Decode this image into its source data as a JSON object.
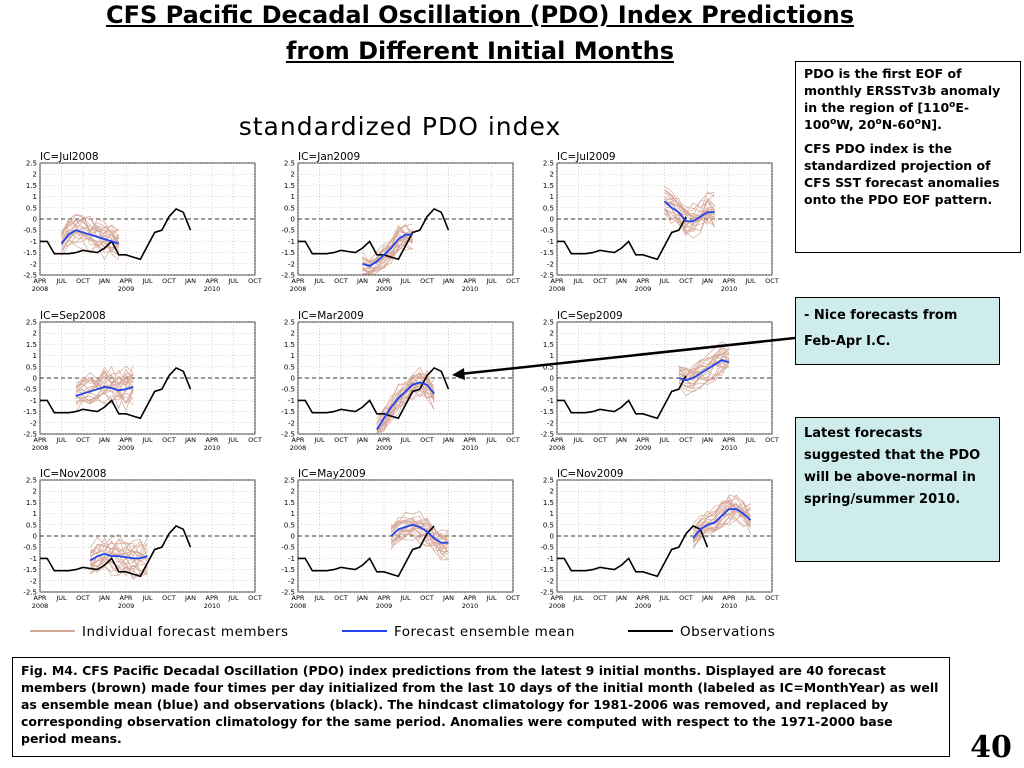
{
  "header": {
    "title_line1": "CFS Pacific Decadal Oscillation (PDO) Index Predictions",
    "title_line2": "from Different Initial Months"
  },
  "chart_title": "standardized PDO index",
  "info_box": {
    "p1_a": "PDO  is the first EOF of monthly ERSSTv3b anomaly  in the region of [110",
    "p1_sup1": "o",
    "p1_b": "E-100",
    "p1_sup2": "o",
    "p1_c": "W, 20",
    "p1_sup3": "o",
    "p1_d": "N-60",
    "p1_sup4": "o",
    "p1_e": "N].",
    "p2": "CFS PDO index  is  the standardized projection of CFS SST forecast anomalies onto the PDO EOF pattern."
  },
  "note_box": {
    "dash": "- ",
    "text": "Nice forecasts from Feb-Apr I.C."
  },
  "latest_box": {
    "text": "Latest forecasts suggested that the PDO will be above-normal in spring/summer 2010."
  },
  "caption": "Fig. M4. CFS Pacific Decadal Oscillation (PDO) index predictions from the latest 9 initial months. Displayed are 40 forecast members (brown) made four times per day initialized from the last 10 days of the initial month (labeled as IC=MonthYear) as well as ensemble mean (blue) and observations (black). The hindcast climatology for 1981-2006 was removed, and replaced by corresponding observation climatology for the same period. Anomalies were computed with respect to the 1971-2000 base period means.",
  "page_number": "40",
  "colors": {
    "members": "#d6a898",
    "ensemble_mean": "#2244ee",
    "observations": "#000000",
    "panel_bg": "#ffffff"
  },
  "legend": [
    {
      "label": "Individual forecast members",
      "color": "#d6a898"
    },
    {
      "label": "Forecast ensemble mean",
      "color": "#2244ee"
    },
    {
      "label": "Observations",
      "color": "#000000"
    }
  ],
  "chart_data": {
    "type": "line",
    "x_ticks": [
      "APR",
      "JUL",
      "OCT",
      "JAN",
      "APR",
      "JUL",
      "OCT",
      "JAN",
      "APR",
      "JUL",
      "OCT"
    ],
    "year_labels": [
      {
        "label": "2008",
        "at": 0
      },
      {
        "label": "2009",
        "at": 4
      },
      {
        "label": "2010",
        "at": 8
      }
    ],
    "y_ticks": [
      "2.5",
      "2",
      "1.5",
      "1",
      "0.5",
      "0",
      "-0.5",
      "-1",
      "-1.5",
      "-2",
      "-2.5"
    ],
    "ylim": [
      -2.5,
      2.5
    ],
    "x_months_range": [
      0,
      30
    ],
    "observations": [
      -1.0,
      -1.0,
      -1.55,
      -1.55,
      -1.55,
      -1.5,
      -1.4,
      -1.45,
      -1.5,
      -1.3,
      -1.0,
      -1.6,
      -1.6,
      -1.7,
      -1.8,
      -1.2,
      -0.6,
      -0.5,
      0.1,
      0.45,
      0.3,
      -0.5
    ],
    "panels": [
      {
        "ic_label": "IC=Jul2008",
        "mean_start": 3,
        "obs_end": 21,
        "mean": [
          -1.1,
          -0.7,
          -0.5,
          -0.6,
          -0.7,
          -0.8,
          -0.9,
          -1.0,
          -1.1
        ],
        "spread": 0.9
      },
      {
        "ic_label": "IC=Jan2009",
        "mean_start": 9,
        "obs_end": 21,
        "mean": [
          -2.0,
          -2.1,
          -1.9,
          -1.6,
          -1.3,
          -0.9,
          -0.7,
          -0.7
        ],
        "spread": 0.7
      },
      {
        "ic_label": "IC=Jul2009",
        "mean_start": 15,
        "obs_end": 18,
        "mean": [
          0.8,
          0.5,
          0.3,
          -0.1,
          -0.1,
          0.1,
          0.3,
          0.3
        ],
        "spread": 0.9
      },
      {
        "ic_label": "IC=Sep2008",
        "mean_start": 5,
        "obs_end": 21,
        "mean": [
          -0.8,
          -0.7,
          -0.6,
          -0.5,
          -0.4,
          -0.45,
          -0.55,
          -0.5,
          -0.4
        ],
        "spread": 1.0
      },
      {
        "ic_label": "IC=Mar2009",
        "mean_start": 11,
        "obs_end": 21,
        "mean": [
          -2.3,
          -1.8,
          -1.3,
          -0.9,
          -0.6,
          -0.3,
          -0.2,
          -0.3,
          -0.7
        ],
        "spread": 0.9
      },
      {
        "ic_label": "IC=Sep2009",
        "mean_start": 17,
        "obs_end": 18,
        "mean": [
          0.0,
          -0.1,
          0.0,
          0.2,
          0.4,
          0.6,
          0.8,
          0.7
        ],
        "spread": 0.8
      },
      {
        "ic_label": "IC=Nov2008",
        "mean_start": 7,
        "obs_end": 21,
        "mean": [
          -1.1,
          -0.9,
          -0.8,
          -0.9,
          -0.9,
          -0.95,
          -1.0,
          -1.0,
          -0.9
        ],
        "spread": 1.0
      },
      {
        "ic_label": "IC=May2009",
        "mean_start": 13,
        "obs_end": 19,
        "mean": [
          0.0,
          0.3,
          0.4,
          0.5,
          0.4,
          0.2,
          -0.1,
          -0.3,
          -0.3
        ],
        "spread": 0.8
      },
      {
        "ic_label": "IC=Nov2009",
        "mean_start": 19,
        "obs_end": 21,
        "mean": [
          -0.1,
          0.3,
          0.5,
          0.6,
          0.9,
          1.2,
          1.2,
          1.0,
          0.7
        ],
        "spread": 0.8
      }
    ]
  }
}
